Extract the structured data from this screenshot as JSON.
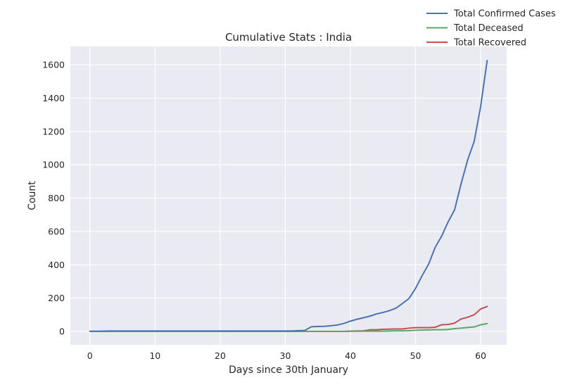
{
  "chart_data": {
    "type": "line",
    "title": "Cumulative Stats : India",
    "xlabel": "Days since 30th January",
    "ylabel": "Count",
    "xlim": [
      -3,
      64
    ],
    "ylim": [
      -80,
      1710
    ],
    "xticks": [
      0,
      10,
      20,
      30,
      40,
      50,
      60
    ],
    "yticks": [
      0,
      200,
      400,
      600,
      800,
      1000,
      1200,
      1400,
      1600
    ],
    "grid": true,
    "legend_position": "top-right",
    "background_color": "#eaeaf2",
    "x": [
      0,
      1,
      2,
      3,
      4,
      5,
      6,
      7,
      8,
      9,
      10,
      11,
      12,
      13,
      14,
      15,
      16,
      17,
      18,
      19,
      20,
      21,
      22,
      23,
      24,
      25,
      26,
      27,
      28,
      29,
      30,
      31,
      32,
      33,
      34,
      35,
      36,
      37,
      38,
      39,
      40,
      41,
      42,
      43,
      44,
      45,
      46,
      47,
      48,
      49,
      50,
      51,
      52,
      53,
      54,
      55,
      56,
      57,
      58,
      59,
      60,
      61
    ],
    "series": [
      {
        "name": "Total Confirmed Cases",
        "color": "#4c72b0",
        "values": [
          1,
          1,
          2,
          3,
          3,
          3,
          3,
          3,
          3,
          3,
          3,
          3,
          3,
          3,
          3,
          3,
          3,
          3,
          3,
          3,
          3,
          3,
          3,
          3,
          3,
          3,
          3,
          3,
          3,
          3,
          3,
          3,
          5,
          6,
          28,
          30,
          31,
          34,
          39,
          48,
          62,
          73,
          82,
          92,
          105,
          114,
          125,
          140,
          168,
          198,
          258,
          334,
          403,
          503,
          571,
          657,
          730,
          886,
          1029,
          1139,
          1350,
          1625
        ]
      },
      {
        "name": "Total Deceased",
        "color": "#55a868",
        "values": [
          0,
          0,
          0,
          0,
          0,
          0,
          0,
          0,
          0,
          0,
          0,
          0,
          0,
          0,
          0,
          0,
          0,
          0,
          0,
          0,
          0,
          0,
          0,
          0,
          0,
          0,
          0,
          0,
          0,
          0,
          0,
          0,
          0,
          0,
          0,
          0,
          0,
          0,
          0,
          0,
          1,
          1,
          2,
          2,
          2,
          2,
          3,
          4,
          4,
          5,
          7,
          8,
          9,
          10,
          10,
          12,
          17,
          20,
          24,
          27,
          40,
          47
        ]
      },
      {
        "name": "Total Recovered",
        "color": "#c44e52",
        "values": [
          0,
          0,
          0,
          0,
          0,
          0,
          0,
          0,
          0,
          0,
          0,
          0,
          0,
          0,
          0,
          0,
          0,
          0,
          0,
          0,
          0,
          0,
          0,
          0,
          0,
          0,
          0,
          0,
          0,
          0,
          0,
          0,
          0,
          0,
          0,
          0,
          0,
          0,
          0,
          0,
          2,
          3,
          4,
          10,
          10,
          13,
          14,
          15,
          15,
          20,
          23,
          23,
          23,
          25,
          40,
          42,
          50,
          75,
          85,
          100,
          135,
          150
        ]
      }
    ]
  }
}
